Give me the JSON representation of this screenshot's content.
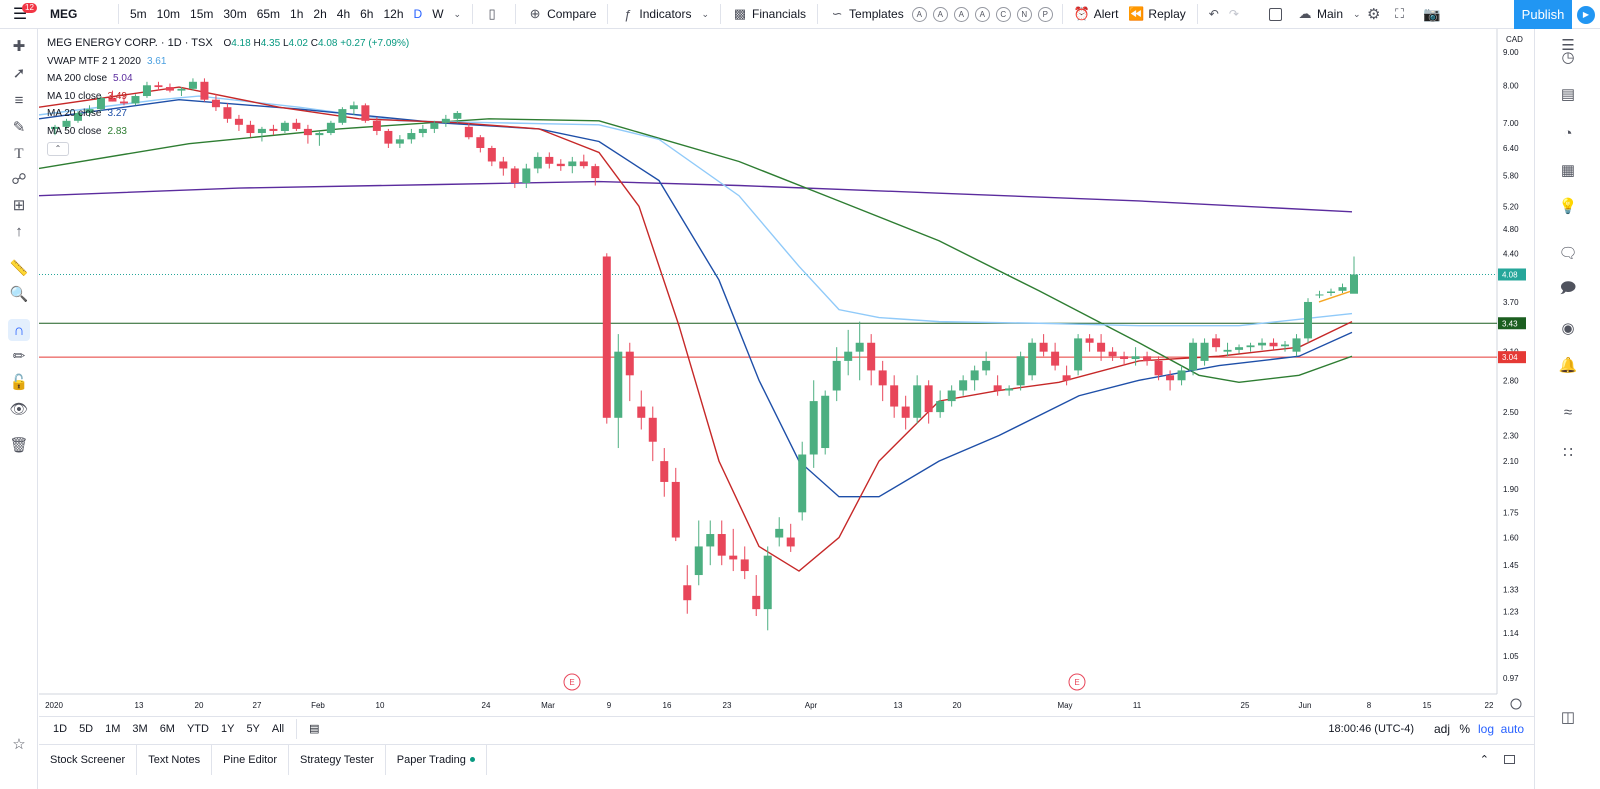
{
  "topbar": {
    "notification_count": "12",
    "symbol": "MEG",
    "intervals": [
      "5m",
      "10m",
      "15m",
      "30m",
      "65m",
      "1h",
      "2h",
      "4h",
      "6h",
      "12h",
      "D",
      "W"
    ],
    "active_interval": "D",
    "compare": "Compare",
    "indicators": "Indicators",
    "financials": "Financials",
    "templates": "Templates",
    "template_letters": [
      "A",
      "A",
      "A",
      "A",
      "C",
      "N",
      "P"
    ],
    "alert": "Alert",
    "replay": "Replay",
    "layout": "Main",
    "publish": "Publish"
  },
  "legend": {
    "title": "MEG ENERGY CORP. · 1D · TSX",
    "open_label": "O",
    "open": "4.18",
    "high_label": "H",
    "high": "4.35",
    "low_label": "L",
    "low": "4.02",
    "close_label": "C",
    "close": "4.08",
    "change": "+0.27 (+7.09%)",
    "indicators": [
      {
        "label": "VWAP MTF 2 1 2020",
        "value": "3.61",
        "color": "#4a9fe0"
      },
      {
        "label": "MA 200 close",
        "value": "5.04",
        "color": "#5b2c9e"
      },
      {
        "label": "MA 10 close",
        "value": "3.49",
        "color": "#c62828"
      },
      {
        "label": "MA 20 close",
        "value": "3.27",
        "color": "#1e4fa8"
      },
      {
        "label": "MA 50 close",
        "value": "2.83",
        "color": "#2e7d32"
      }
    ]
  },
  "chart_data": {
    "type": "candlestick",
    "symbol": "MEG",
    "exchange": "TSX",
    "interval": "1D",
    "currency": "CAD",
    "y_ticks": [
      "9.00",
      "8.00",
      "7.00",
      "6.40",
      "5.80",
      "5.20",
      "4.80",
      "4.40",
      "3.70",
      "3.10",
      "2.80",
      "2.50",
      "2.30",
      "2.10",
      "1.90",
      "1.75",
      "1.60",
      "1.45",
      "1.33",
      "1.23",
      "1.14",
      "1.05",
      "0.97"
    ],
    "x_ticks": [
      "2020",
      "13",
      "20",
      "27",
      "Feb",
      "10",
      "24",
      "Mar",
      "9",
      "16",
      "23",
      "Apr",
      "13",
      "20",
      "May",
      "11",
      "25",
      "Jun",
      "8",
      "15",
      "22"
    ],
    "price_labels": [
      {
        "value": "4.08",
        "color": "#26a69a"
      },
      {
        "value": "3.43",
        "color": "#1b5e20"
      },
      {
        "value": "3.04",
        "color": "#e53935"
      }
    ],
    "horizontal_lines": [
      {
        "value": 3.43,
        "color": "#1b5e20"
      },
      {
        "value": 3.04,
        "color": "#e53935"
      }
    ],
    "earnings_markers": [
      "E",
      "E"
    ],
    "up_color": "#4caf81",
    "down_color": "#e8465a"
  },
  "bottombar": {
    "ranges": [
      "1D",
      "5D",
      "1M",
      "3M",
      "6M",
      "YTD",
      "1Y",
      "5Y",
      "All"
    ],
    "time": "18:00:46 (UTC-4)",
    "adj": "adj",
    "percent": "%",
    "log": "log",
    "auto": "auto"
  },
  "footer": {
    "tabs": [
      "Stock Screener",
      "Text Notes",
      "Pine Editor",
      "Strategy Tester",
      "Paper Trading"
    ]
  }
}
